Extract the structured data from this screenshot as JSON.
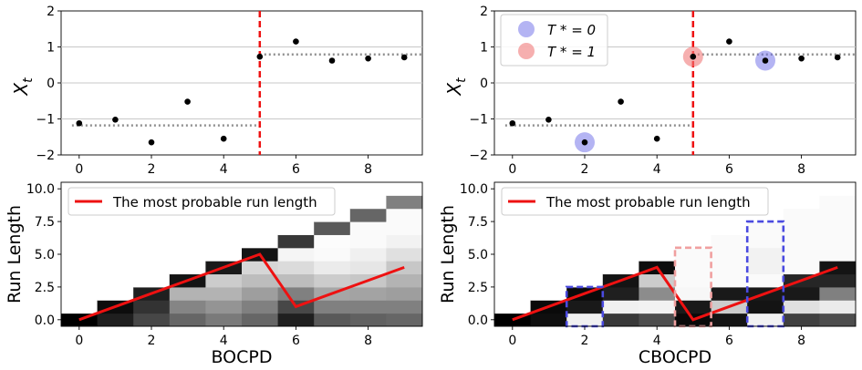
{
  "figure": {
    "xticks": [
      "0",
      "2",
      "4",
      "6",
      "8"
    ],
    "yticks_top": [
      "−2",
      "−1",
      "0",
      "1",
      "2"
    ],
    "yticks_bottom": [
      "0.0",
      "2.5",
      "5.0",
      "7.5",
      "10.0"
    ],
    "ylabel_top": "X",
    "ylabel_top_sub": "t",
    "ylabel_bottom": "Run Length",
    "legend_line_label": "The most probable run length",
    "legend_t0_label": "T * = 0",
    "legend_t1_label": "T * = 1",
    "xlabel_left": "BOCPD",
    "xlabel_right": "CBOCPD",
    "colors": {
      "line": "#ee1111",
      "t0": "#6a6ae8",
      "t1": "#f07a7a",
      "box_blue": "#4a4ae0",
      "box_pink": "#f0a0a0",
      "grid": "#c8c8c8",
      "segment": "#909090"
    }
  },
  "chart_data": [
    {
      "type": "scatter",
      "panel": "top-left",
      "x": [
        0,
        1,
        2,
        3,
        4,
        5,
        6,
        7,
        8,
        9
      ],
      "y": [
        -1.12,
        -1.02,
        -1.65,
        -0.52,
        -1.55,
        0.73,
        1.15,
        0.62,
        0.68,
        0.71
      ],
      "segments": [
        {
          "x": [
            -0.2,
            4.95
          ],
          "y": -1.18
        },
        {
          "x": [
            5.0,
            9.5
          ],
          "y": 0.79
        }
      ],
      "changepoint_x": 5,
      "xlim": [
        -0.5,
        9.5
      ],
      "ylim": [
        -2,
        2
      ],
      "grid": true
    },
    {
      "type": "heatmap",
      "panel": "bottom-left",
      "run_length_probs": [
        [
          1,
          0,
          0,
          0,
          0,
          0,
          0,
          0,
          0,
          0,
          0
        ],
        [
          0.88,
          0.95,
          0,
          0,
          0,
          0,
          0,
          0,
          0,
          0,
          0
        ],
        [
          0.72,
          0.8,
          0.88,
          0,
          0,
          0,
          0,
          0,
          0,
          0,
          0
        ],
        [
          0.6,
          0.48,
          0.3,
          0.92,
          0,
          0,
          0,
          0,
          0,
          0,
          0
        ],
        [
          0.52,
          0.42,
          0.3,
          0.2,
          0.9,
          0,
          0,
          0,
          0,
          0,
          0
        ],
        [
          0.6,
          0.5,
          0.38,
          0.26,
          0.16,
          0.92,
          0,
          0,
          0,
          0,
          0
        ],
        [
          0.88,
          0.72,
          0.5,
          0.26,
          0.14,
          0.04,
          0.78,
          0,
          0,
          0,
          0
        ],
        [
          0.65,
          0.5,
          0.35,
          0.2,
          0.08,
          0.02,
          0.01,
          0.65,
          0,
          0,
          0
        ],
        [
          0.62,
          0.5,
          0.36,
          0.22,
          0.1,
          0.06,
          0.02,
          0.02,
          0.6,
          0,
          0
        ],
        [
          0.6,
          0.5,
          0.38,
          0.3,
          0.22,
          0.12,
          0.05,
          0.02,
          0.02,
          0.5,
          0
        ]
      ],
      "most_probable_run_length": [
        0,
        1,
        2,
        3,
        4,
        5,
        1,
        2,
        3,
        4
      ],
      "xlim": [
        -0.5,
        9.5
      ],
      "ylim": [
        -0.5,
        10.5
      ]
    },
    {
      "type": "scatter",
      "panel": "top-right",
      "x": [
        0,
        1,
        2,
        3,
        4,
        5,
        6,
        7,
        8,
        9
      ],
      "y": [
        -1.12,
        -1.02,
        -1.65,
        -0.52,
        -1.55,
        0.73,
        1.15,
        0.62,
        0.68,
        0.71
      ],
      "segments": [
        {
          "x": [
            -0.2,
            4.95
          ],
          "y": -1.18
        },
        {
          "x": [
            5.0,
            9.5
          ],
          "y": 0.79
        }
      ],
      "changepoint_x": 5,
      "t0_points": [
        {
          "x": 2,
          "y": -1.65
        },
        {
          "x": 7,
          "y": 0.62
        }
      ],
      "t1_points": [
        {
          "x": 5,
          "y": 0.73
        }
      ],
      "legend": "top-left",
      "xlim": [
        -0.5,
        9.5
      ],
      "ylim": [
        -2,
        2
      ],
      "grid": true
    },
    {
      "type": "heatmap",
      "panel": "bottom-right",
      "run_length_probs": [
        [
          1,
          0,
          0,
          0,
          0,
          0,
          0,
          0,
          0,
          0,
          0
        ],
        [
          0.94,
          0.96,
          0,
          0,
          0,
          0,
          0,
          0,
          0,
          0,
          0
        ],
        [
          0.06,
          0.9,
          0.96,
          0,
          0,
          0,
          0,
          0,
          0,
          0,
          0
        ],
        [
          0.78,
          0.06,
          0.88,
          0.92,
          0,
          0,
          0,
          0,
          0,
          0,
          0
        ],
        [
          0.7,
          0.05,
          0.45,
          0.2,
          0.95,
          0,
          0,
          0,
          0,
          0,
          0
        ],
        [
          0.96,
          0.9,
          0.03,
          0.02,
          0.02,
          0.02,
          0,
          0,
          0,
          0,
          0
        ],
        [
          0.92,
          0.2,
          0.9,
          0.02,
          0.02,
          0.02,
          0.02,
          0,
          0,
          0,
          0
        ],
        [
          0.05,
          0.92,
          0.9,
          0.02,
          0.05,
          0.05,
          0.02,
          0.02,
          0,
          0,
          0
        ],
        [
          0.75,
          0.12,
          0.9,
          0.85,
          0.02,
          0.02,
          0.02,
          0.02,
          0.02,
          0,
          0
        ],
        [
          0.7,
          0.08,
          0.5,
          0.85,
          0.92,
          0.02,
          0.02,
          0.02,
          0.02,
          0.02,
          0
        ]
      ],
      "most_probable_run_length": [
        0,
        1,
        2,
        3,
        4,
        0,
        1,
        2,
        3,
        4
      ],
      "boxes": [
        {
          "x": 2,
          "ymin": -0.5,
          "ymax": 2.5,
          "color": "blue"
        },
        {
          "x": 5,
          "ymin": -0.5,
          "ymax": 5.5,
          "color": "pink"
        },
        {
          "x": 7,
          "ymin": -0.5,
          "ymax": 7.5,
          "color": "blue"
        }
      ],
      "xlim": [
        -0.5,
        9.5
      ],
      "ylim": [
        -0.5,
        10.5
      ]
    }
  ]
}
